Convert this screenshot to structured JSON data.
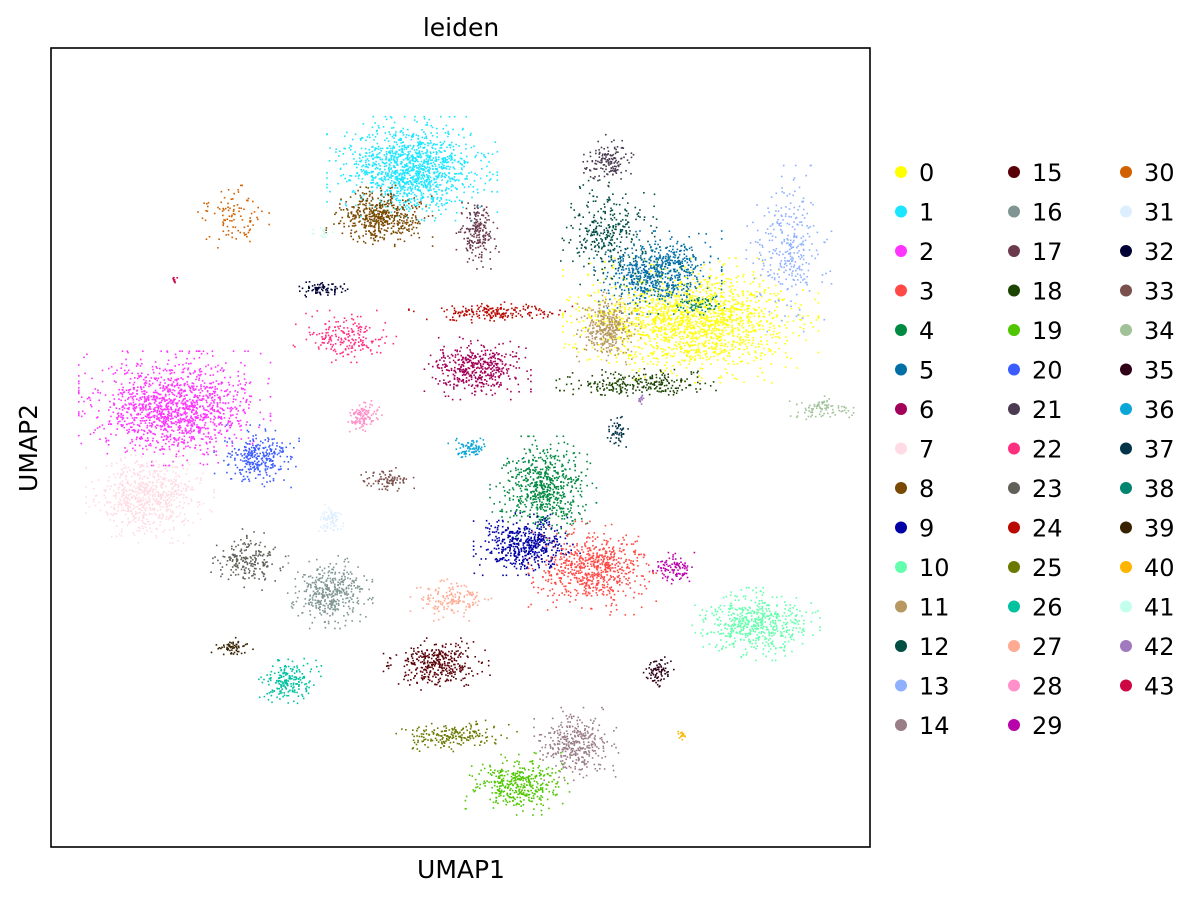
{
  "chart_data": {
    "type": "scatter",
    "title": "leiden",
    "xlabel": "UMAP1",
    "ylabel": "UMAP2",
    "grid": false,
    "ticks": "none",
    "legend_placement": "right, outside plot, 3 columns",
    "series": [
      {
        "name": "0",
        "color": "#ffff00",
        "clusters": [
          {
            "x": 0.78,
            "y": 0.34,
            "rx": 0.12,
            "ry": 0.06,
            "n": 1800
          }
        ]
      },
      {
        "name": "1",
        "color": "#1ce6ff",
        "clusters": [
          {
            "x": 0.44,
            "y": 0.15,
            "rx": 0.08,
            "ry": 0.05,
            "n": 1300
          }
        ]
      },
      {
        "name": "2",
        "color": "#ff34ff",
        "clusters": [
          {
            "x": 0.15,
            "y": 0.45,
            "rx": 0.09,
            "ry": 0.055,
            "n": 1400
          }
        ]
      },
      {
        "name": "3",
        "color": "#ff4a46",
        "clusters": [
          {
            "x": 0.66,
            "y": 0.65,
            "rx": 0.06,
            "ry": 0.045,
            "n": 700
          }
        ]
      },
      {
        "name": "4",
        "color": "#008941",
        "clusters": [
          {
            "x": 0.6,
            "y": 0.55,
            "rx": 0.05,
            "ry": 0.05,
            "n": 650
          }
        ]
      },
      {
        "name": "5",
        "color": "#006fa6",
        "clusters": [
          {
            "x": 0.74,
            "y": 0.28,
            "rx": 0.06,
            "ry": 0.04,
            "n": 700
          }
        ]
      },
      {
        "name": "6",
        "color": "#a30059",
        "clusters": [
          {
            "x": 0.52,
            "y": 0.4,
            "rx": 0.05,
            "ry": 0.03,
            "n": 450
          }
        ]
      },
      {
        "name": "7",
        "color": "#ffdbe5",
        "clusters": [
          {
            "x": 0.12,
            "y": 0.56,
            "rx": 0.06,
            "ry": 0.045,
            "n": 700
          }
        ]
      },
      {
        "name": "8",
        "color": "#7a4900",
        "clusters": [
          {
            "x": 0.4,
            "y": 0.21,
            "rx": 0.05,
            "ry": 0.03,
            "n": 500
          }
        ]
      },
      {
        "name": "9",
        "color": "#0000a6",
        "clusters": [
          {
            "x": 0.58,
            "y": 0.62,
            "rx": 0.05,
            "ry": 0.03,
            "n": 500
          }
        ]
      },
      {
        "name": "10",
        "color": "#63ffac",
        "clusters": [
          {
            "x": 0.86,
            "y": 0.72,
            "rx": 0.06,
            "ry": 0.035,
            "n": 550
          }
        ]
      },
      {
        "name": "11",
        "color": "#b79762",
        "clusters": [
          {
            "x": 0.68,
            "y": 0.35,
            "rx": 0.03,
            "ry": 0.035,
            "n": 350
          }
        ]
      },
      {
        "name": "12",
        "color": "#004d43",
        "clusters": [
          {
            "x": 0.68,
            "y": 0.23,
            "rx": 0.045,
            "ry": 0.05,
            "n": 300
          }
        ]
      },
      {
        "name": "13",
        "color": "#8fb0ff",
        "clusters": [
          {
            "x": 0.9,
            "y": 0.25,
            "rx": 0.04,
            "ry": 0.08,
            "n": 300
          }
        ]
      },
      {
        "name": "14",
        "color": "#997d87",
        "clusters": [
          {
            "x": 0.64,
            "y": 0.87,
            "rx": 0.04,
            "ry": 0.035,
            "n": 350
          }
        ]
      },
      {
        "name": "15",
        "color": "#5a0007",
        "clusters": [
          {
            "x": 0.47,
            "y": 0.77,
            "rx": 0.05,
            "ry": 0.025,
            "n": 350
          }
        ]
      },
      {
        "name": "16",
        "color": "#809693",
        "clusters": [
          {
            "x": 0.34,
            "y": 0.68,
            "rx": 0.04,
            "ry": 0.035,
            "n": 400
          }
        ]
      },
      {
        "name": "17",
        "color": "#6a3a4c",
        "clusters": [
          {
            "x": 0.52,
            "y": 0.23,
            "rx": 0.02,
            "ry": 0.035,
            "n": 200
          }
        ]
      },
      {
        "name": "18",
        "color": "#1b4400",
        "clusters": [
          {
            "x": 0.72,
            "y": 0.42,
            "rx": 0.08,
            "ry": 0.015,
            "n": 250
          }
        ]
      },
      {
        "name": "19",
        "color": "#4fc601",
        "clusters": [
          {
            "x": 0.57,
            "y": 0.92,
            "rx": 0.05,
            "ry": 0.03,
            "n": 400
          }
        ]
      },
      {
        "name": "20",
        "color": "#3b5dff",
        "clusters": [
          {
            "x": 0.25,
            "y": 0.51,
            "rx": 0.04,
            "ry": 0.03,
            "n": 300
          }
        ]
      },
      {
        "name": "21",
        "color": "#4a3b53",
        "clusters": [
          {
            "x": 0.68,
            "y": 0.14,
            "rx": 0.025,
            "ry": 0.025,
            "n": 150
          }
        ]
      },
      {
        "name": "22",
        "color": "#ff2f80",
        "clusters": [
          {
            "x": 0.36,
            "y": 0.36,
            "rx": 0.05,
            "ry": 0.025,
            "n": 200
          }
        ]
      },
      {
        "name": "23",
        "color": "#61615a",
        "clusters": [
          {
            "x": 0.24,
            "y": 0.64,
            "rx": 0.035,
            "ry": 0.03,
            "n": 200
          }
        ]
      },
      {
        "name": "24",
        "color": "#ba0900",
        "clusters": [
          {
            "x": 0.54,
            "y": 0.33,
            "rx": 0.08,
            "ry": 0.01,
            "n": 200
          }
        ]
      },
      {
        "name": "25",
        "color": "#6b7900",
        "clusters": [
          {
            "x": 0.49,
            "y": 0.86,
            "rx": 0.06,
            "ry": 0.015,
            "n": 200
          }
        ]
      },
      {
        "name": "26",
        "color": "#00c2a0",
        "clusters": [
          {
            "x": 0.29,
            "y": 0.79,
            "rx": 0.03,
            "ry": 0.025,
            "n": 200
          }
        ]
      },
      {
        "name": "27",
        "color": "#ffaa92",
        "clusters": [
          {
            "x": 0.49,
            "y": 0.69,
            "rx": 0.04,
            "ry": 0.02,
            "n": 150
          }
        ]
      },
      {
        "name": "28",
        "color": "#ff90c9",
        "clusters": [
          {
            "x": 0.38,
            "y": 0.46,
            "rx": 0.02,
            "ry": 0.015,
            "n": 120
          }
        ]
      },
      {
        "name": "29",
        "color": "#b903aa",
        "clusters": [
          {
            "x": 0.76,
            "y": 0.65,
            "rx": 0.02,
            "ry": 0.015,
            "n": 100
          }
        ]
      },
      {
        "name": "30",
        "color": "#d16100",
        "clusters": [
          {
            "x": 0.22,
            "y": 0.21,
            "rx": 0.035,
            "ry": 0.03,
            "n": 100
          }
        ]
      },
      {
        "name": "31",
        "color": "#ddefff",
        "clusters": [
          {
            "x": 0.34,
            "y": 0.59,
            "rx": 0.015,
            "ry": 0.015,
            "n": 80
          }
        ]
      },
      {
        "name": "32",
        "color": "#000035",
        "clusters": [
          {
            "x": 0.33,
            "y": 0.3,
            "rx": 0.03,
            "ry": 0.008,
            "n": 80
          }
        ]
      },
      {
        "name": "33",
        "color": "#7b4f4b",
        "clusters": [
          {
            "x": 0.41,
            "y": 0.54,
            "rx": 0.025,
            "ry": 0.012,
            "n": 90
          }
        ]
      },
      {
        "name": "34",
        "color": "#a1c299",
        "clusters": [
          {
            "x": 0.94,
            "y": 0.45,
            "rx": 0.03,
            "ry": 0.012,
            "n": 90
          }
        ]
      },
      {
        "name": "35",
        "color": "#300018",
        "clusters": [
          {
            "x": 0.74,
            "y": 0.78,
            "rx": 0.015,
            "ry": 0.018,
            "n": 80
          }
        ]
      },
      {
        "name": "36",
        "color": "#0aa6d8",
        "clusters": [
          {
            "x": 0.51,
            "y": 0.5,
            "rx": 0.02,
            "ry": 0.012,
            "n": 80
          }
        ]
      },
      {
        "name": "37",
        "color": "#013349",
        "clusters": [
          {
            "x": 0.69,
            "y": 0.48,
            "rx": 0.012,
            "ry": 0.015,
            "n": 50
          }
        ]
      },
      {
        "name": "38",
        "color": "#00846f",
        "clusters": [
          {
            "x": 0.79,
            "y": 0.32,
            "rx": 0.025,
            "ry": 0.01,
            "n": 60
          }
        ]
      },
      {
        "name": "39",
        "color": "#372101",
        "clusters": [
          {
            "x": 0.22,
            "y": 0.75,
            "rx": 0.02,
            "ry": 0.01,
            "n": 60
          }
        ]
      },
      {
        "name": "40",
        "color": "#ffb500",
        "clusters": [
          {
            "x": 0.77,
            "y": 0.86,
            "rx": 0.005,
            "ry": 0.006,
            "n": 15
          }
        ]
      },
      {
        "name": "41",
        "color": "#c2ffed",
        "clusters": [
          {
            "x": 0.33,
            "y": 0.23,
            "rx": 0.01,
            "ry": 0.005,
            "n": 15
          }
        ]
      },
      {
        "name": "42",
        "color": "#a079bf",
        "clusters": [
          {
            "x": 0.72,
            "y": 0.44,
            "rx": 0.006,
            "ry": 0.008,
            "n": 12
          }
        ]
      },
      {
        "name": "43",
        "color": "#cc0744",
        "clusters": [
          {
            "x": 0.15,
            "y": 0.29,
            "rx": 0.004,
            "ry": 0.004,
            "n": 8
          }
        ]
      }
    ]
  }
}
